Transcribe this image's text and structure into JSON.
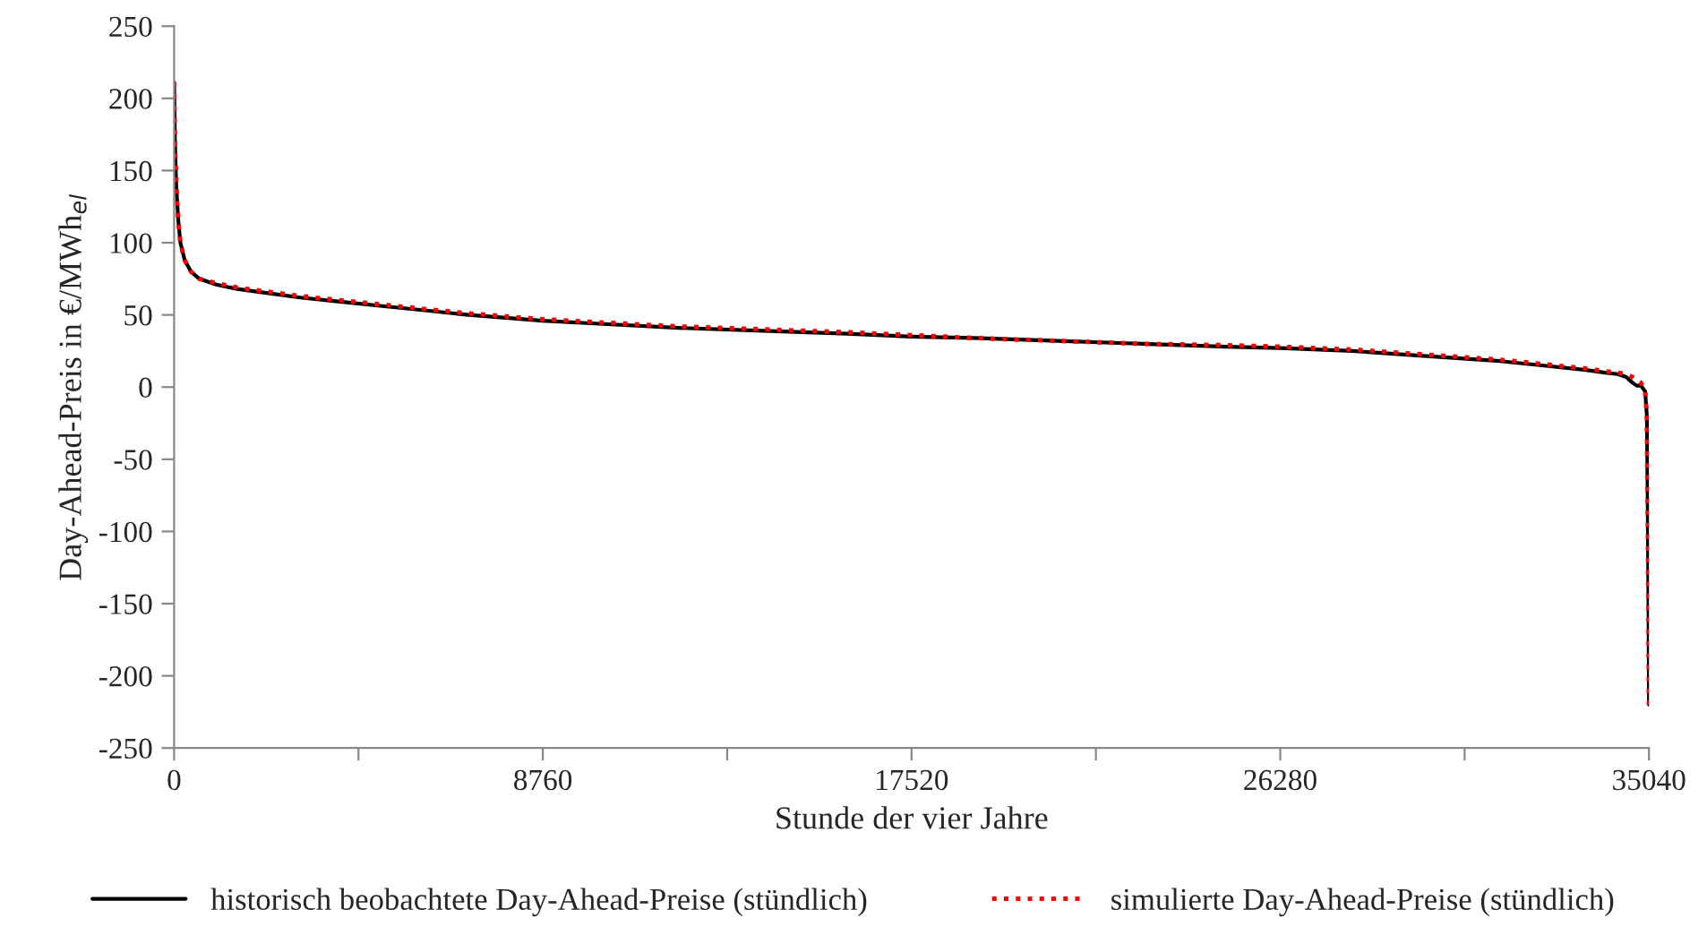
{
  "chart_data": {
    "type": "line",
    "xlabel": "Stunde der vier Jahre",
    "ylabel": "Day-Ahead-Preis in €/MWh$_{el}$",
    "xlim": [
      0,
      35040
    ],
    "xticks": [
      0,
      {
        "value": 4380,
        "label": null
      },
      8760,
      {
        "value": 13140,
        "label": null
      },
      17520,
      {
        "value": 21900,
        "label": null
      },
      26280,
      {
        "value": 30660,
        "label": null
      },
      35040
    ],
    "ylim": [
      -250,
      250
    ],
    "yticks": [
      -250,
      -200,
      -150,
      -100,
      -50,
      0,
      50,
      100,
      150,
      200,
      250
    ],
    "grid": false,
    "legend": "bottom",
    "series": [
      {
        "name": "historisch beobachtete Day-Ahead-Preise (stündlich)",
        "color": "#000000",
        "line_style": "solid",
        "x": [
          0,
          20,
          50,
          100,
          150,
          250,
          400,
          600,
          1000,
          1500,
          2000,
          3000,
          4000,
          5000,
          6000,
          7000,
          8760,
          10000,
          12000,
          14000,
          16000,
          17520,
          19000,
          21000,
          23000,
          25000,
          26280,
          28000,
          30000,
          31500,
          32500,
          33500,
          34000,
          34300,
          34500,
          34650,
          34750,
          34850,
          34950,
          34990,
          35010,
          35030,
          35040
        ],
        "values": [
          211,
          170,
          140,
          115,
          100,
          88,
          80,
          75,
          71,
          68,
          66,
          62,
          59,
          56,
          53,
          50,
          46,
          44,
          41,
          39,
          37,
          35,
          34,
          32,
          30,
          28,
          27,
          25,
          21,
          18,
          15,
          12,
          10,
          9,
          7,
          3,
          1,
          1,
          -3,
          -20,
          -80,
          -160,
          -220
        ]
      },
      {
        "name": "simulierte Day-Ahead-Preise (stündlich)",
        "color": "#ff0000",
        "line_style": "dotted",
        "x": [
          0,
          20,
          50,
          100,
          150,
          250,
          400,
          600,
          1000,
          1500,
          2000,
          3000,
          4000,
          5000,
          6000,
          7000,
          8760,
          10000,
          12000,
          14000,
          16000,
          17520,
          19000,
          21000,
          23000,
          25000,
          26280,
          28000,
          30000,
          31500,
          32500,
          33500,
          34000,
          34300,
          34500,
          34650,
          34750,
          34850,
          34950,
          34990,
          35010,
          35030,
          35040
        ],
        "values": [
          211,
          170,
          140,
          115,
          100,
          88,
          80,
          75,
          72,
          69,
          67,
          63,
          60,
          57,
          54,
          51,
          47,
          45,
          42,
          40,
          38,
          36,
          34,
          32,
          30,
          29,
          28,
          26,
          22,
          19,
          16,
          13,
          11,
          10,
          9,
          7,
          5,
          3,
          -3,
          -20,
          -80,
          -160,
          -220
        ]
      }
    ]
  }
}
